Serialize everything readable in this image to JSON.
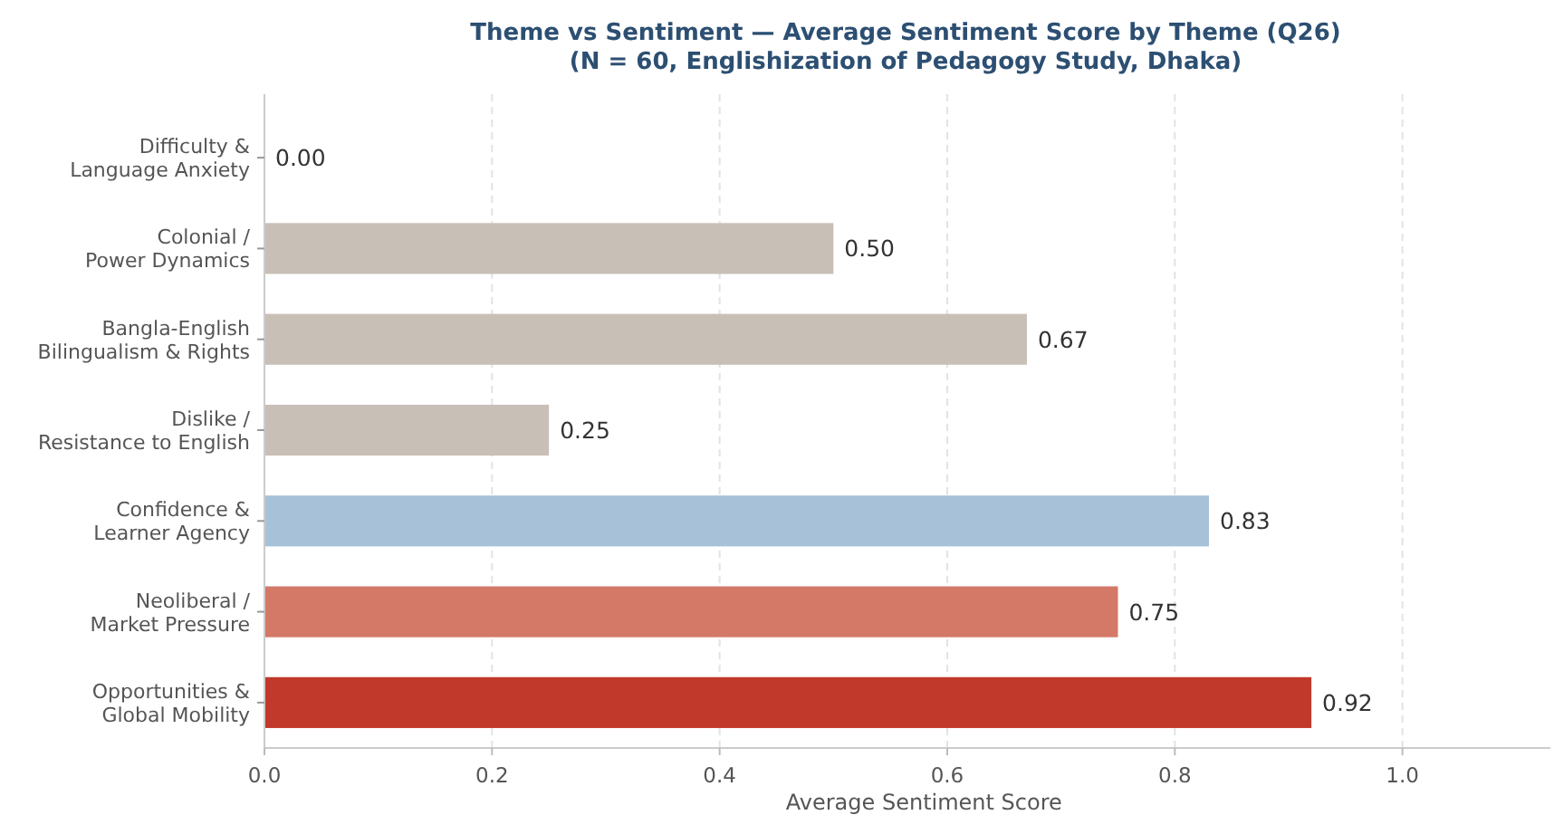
{
  "chart_data": {
    "type": "bar",
    "orientation": "horizontal",
    "title": "Theme vs Sentiment — Average Sentiment Score by Theme (Q26)",
    "subtitle": "(N = 60, Englishization of Pedagogy Study, Dhaka)",
    "xlabel": "Average Sentiment Score",
    "categories": [
      "Difficulty &\nLanguage Anxiety",
      "Colonial /\nPower Dynamics",
      "Bangla-English\nBilingualism & Rights",
      "Dislike /\nResistance to English",
      "Confidence &\nLearner Agency",
      "Neoliberal /\nMarket Pressure",
      "Opportunities &\nGlobal Mobility"
    ],
    "values": [
      0,
      0.5,
      0.67,
      0.25,
      0.83,
      0.75,
      0.92
    ],
    "value_labels": [
      "0.00",
      "0.50",
      "0.67",
      "0.25",
      "0.83",
      "0.75",
      "0.92"
    ],
    "colors": [
      "#c8bfb7",
      "#c8bfb7",
      "#c8bfb7",
      "#c8bfb7",
      "#a7c2d8",
      "#d47867",
      "#c0392b"
    ],
    "xlim": [
      0,
      1.13
    ],
    "xticks": [
      {
        "value": 0,
        "label": "0.0"
      },
      {
        "value": 0.2,
        "label": "0.2"
      },
      {
        "value": 0.4,
        "label": "0.4"
      },
      {
        "value": 0.6,
        "label": "0.6"
      },
      {
        "value": 0.8,
        "label": "0.8"
      },
      {
        "value": 1,
        "label": "1.0"
      }
    ],
    "grid": "x"
  }
}
